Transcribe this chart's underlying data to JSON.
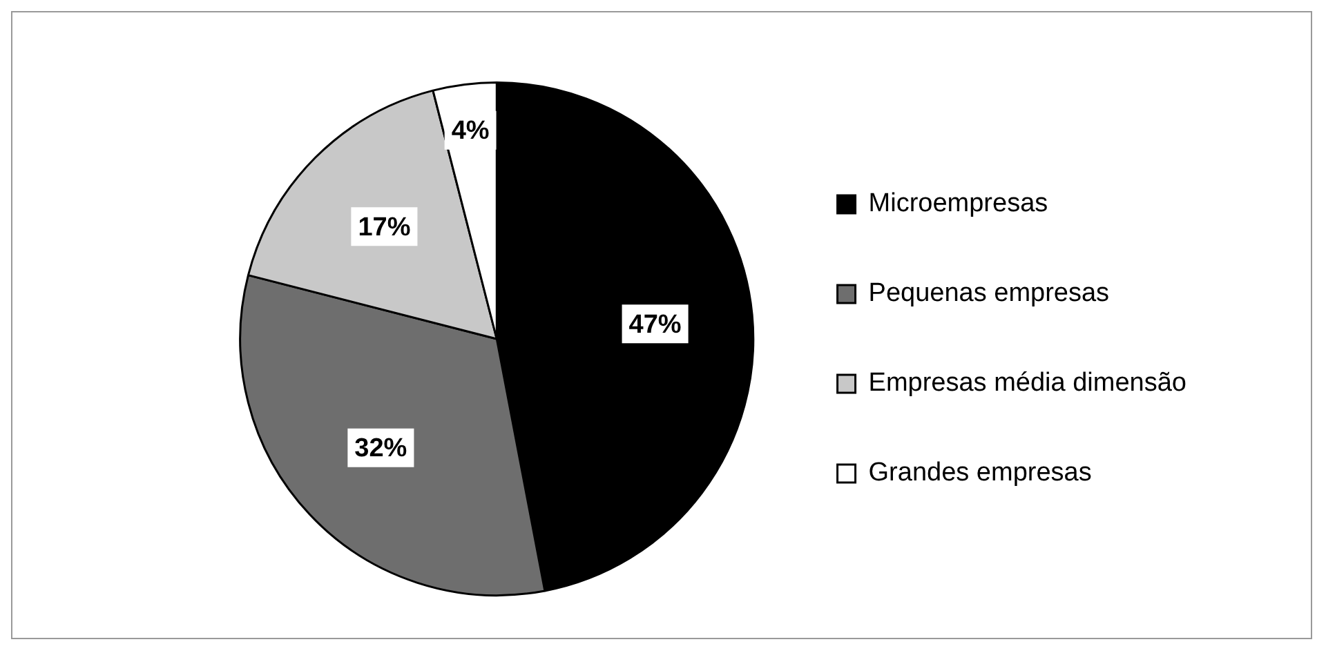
{
  "chart_data": {
    "type": "pie",
    "categories": [
      "Microempresas",
      "Pequenas empresas",
      "Empresas média dimensão",
      "Grandes empresas"
    ],
    "values": [
      47,
      32,
      17,
      4
    ],
    "value_labels": [
      "47%",
      "32%",
      "17%",
      "4%"
    ],
    "colors": [
      "#000000",
      "#6e6e6e",
      "#c8c8c8",
      "#ffffff"
    ],
    "legend": "right"
  }
}
